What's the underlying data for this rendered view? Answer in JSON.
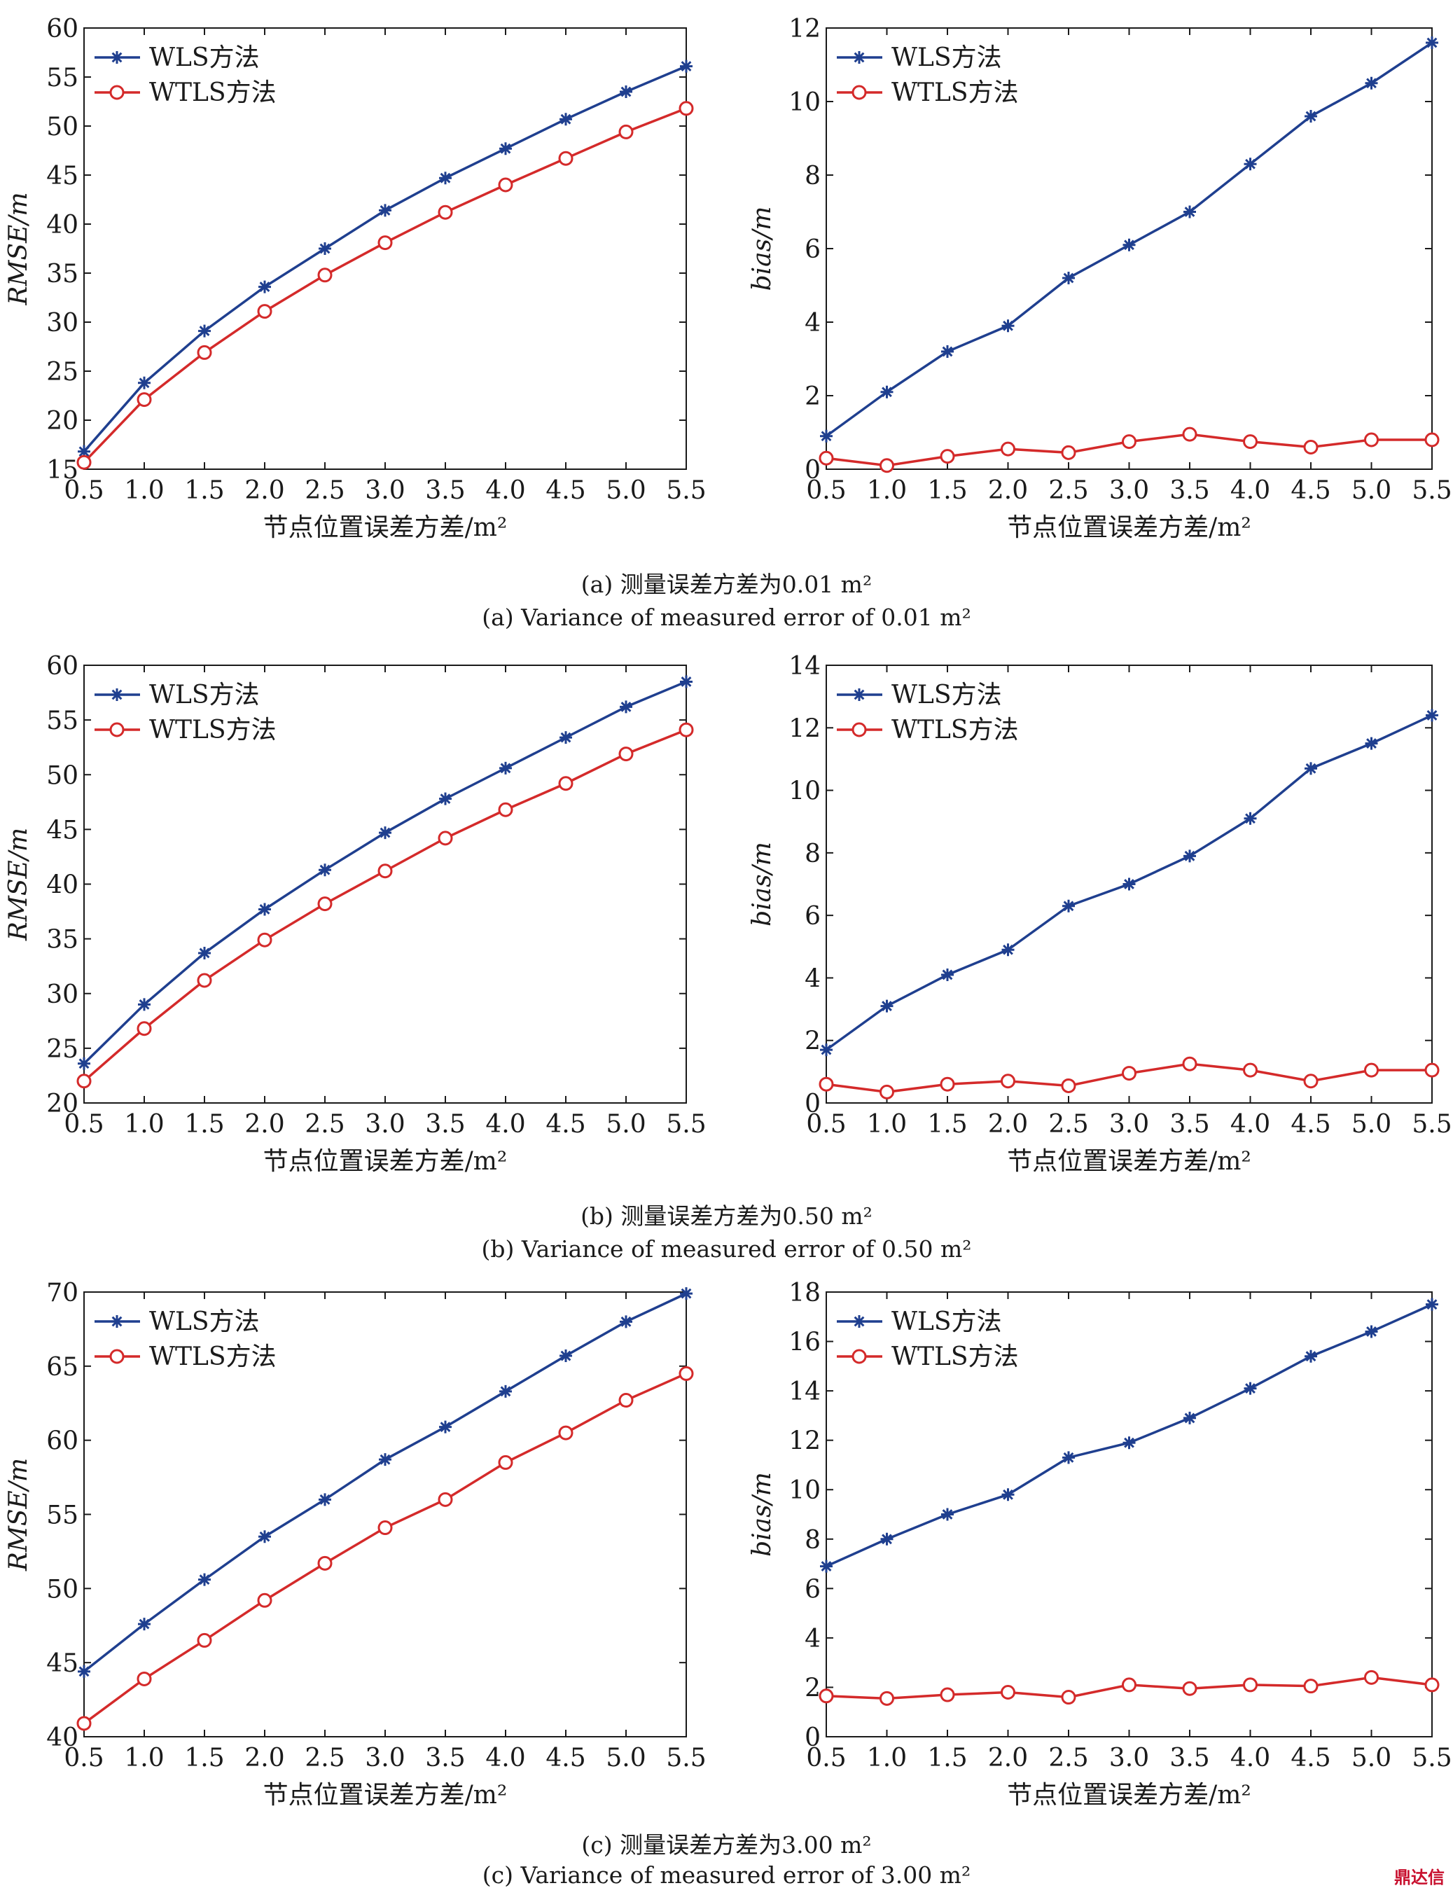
{
  "captions": [
    {
      "zh": "(a) 测量误差方差为0.01 m²",
      "en": "(a) Variance of measured error of 0.01 m²"
    },
    {
      "zh": "(b) 测量误差方差为0.50 m²",
      "en": "(b) Variance of measured error  of 0.50 m²"
    },
    {
      "zh": "(c) 测量误差方差为3.00 m²",
      "en": "(c) Variance of measured error of 3.00 m²"
    }
  ],
  "watermark": "鼎达信",
  "colors": {
    "wls": "#1f3f8f",
    "wtls": "#d42a2a"
  },
  "chart_data": [
    {
      "type": "line",
      "panel": "a-left",
      "x": [
        0.5,
        1.0,
        1.5,
        2.0,
        2.5,
        3.0,
        3.5,
        4.0,
        4.5,
        5.0,
        5.5
      ],
      "x_tick_labels": [
        "0.5",
        "1.0",
        "1.5",
        "2.0",
        "2.5",
        "3.0",
        "3.5",
        "4.0",
        "4.5",
        "5.0",
        "5.5"
      ],
      "xlabel": "节点位置误差方差/m²",
      "ylabel": "RMSE/m",
      "ylim": [
        15,
        60
      ],
      "y_ticks": [
        15,
        20,
        25,
        30,
        35,
        40,
        45,
        50,
        55,
        60
      ],
      "legend": [
        "WLS方法",
        "WTLS方法"
      ],
      "series": [
        {
          "name": "WLS方法",
          "marker": "star",
          "values": [
            16.8,
            23.8,
            29.1,
            33.6,
            37.5,
            41.4,
            44.7,
            47.7,
            50.7,
            53.5,
            56.1
          ]
        },
        {
          "name": "WTLS方法",
          "marker": "circle",
          "values": [
            15.7,
            22.1,
            26.9,
            31.1,
            34.8,
            38.1,
            41.2,
            44.0,
            46.7,
            49.4,
            51.8
          ]
        }
      ]
    },
    {
      "type": "line",
      "panel": "a-right",
      "x": [
        0.5,
        1.0,
        1.5,
        2.0,
        2.5,
        3.0,
        3.5,
        4.0,
        4.5,
        5.0,
        5.5
      ],
      "x_tick_labels": [
        "0.5",
        "1.0",
        "1.5",
        "2.0",
        "2.5",
        "3.0",
        "3.5",
        "4.0",
        "4.5",
        "5.0",
        "5.5"
      ],
      "xlabel": "节点位置误差方差/m²",
      "ylabel": "bias/m",
      "ylim": [
        0,
        12
      ],
      "y_ticks": [
        0,
        2,
        4,
        6,
        8,
        10,
        12
      ],
      "legend": [
        "WLS方法",
        "WTLS方法"
      ],
      "series": [
        {
          "name": "WLS方法",
          "marker": "star",
          "values": [
            0.9,
            2.1,
            3.2,
            3.9,
            5.2,
            6.1,
            7.0,
            8.3,
            9.6,
            10.5,
            11.6
          ]
        },
        {
          "name": "WTLS方法",
          "marker": "circle",
          "values": [
            0.3,
            0.1,
            0.35,
            0.55,
            0.45,
            0.75,
            0.95,
            0.75,
            0.6,
            0.8,
            0.8
          ]
        }
      ]
    },
    {
      "type": "line",
      "panel": "b-left",
      "x": [
        0.5,
        1.0,
        1.5,
        2.0,
        2.5,
        3.0,
        3.5,
        4.0,
        4.5,
        5.0,
        5.5
      ],
      "x_tick_labels": [
        "0.5",
        "1.0",
        "1.5",
        "2.0",
        "2.5",
        "3.0",
        "3.5",
        "4.0",
        "4.5",
        "5.0",
        "5.5"
      ],
      "xlabel": "节点位置误差方差/m²",
      "ylabel": "RMSE/m",
      "ylim": [
        20,
        60
      ],
      "y_ticks": [
        20,
        25,
        30,
        35,
        40,
        45,
        50,
        55,
        60
      ],
      "legend": [
        "WLS方法",
        "WTLS方法"
      ],
      "series": [
        {
          "name": "WLS方法",
          "marker": "star",
          "values": [
            23.6,
            29.0,
            33.7,
            37.7,
            41.3,
            44.7,
            47.8,
            50.6,
            53.4,
            56.2,
            58.5
          ]
        },
        {
          "name": "WTLS方法",
          "marker": "circle",
          "values": [
            22.0,
            26.8,
            31.2,
            34.9,
            38.2,
            41.2,
            44.2,
            46.8,
            49.2,
            51.9,
            54.1
          ]
        }
      ]
    },
    {
      "type": "line",
      "panel": "b-right",
      "x": [
        0.5,
        1.0,
        1.5,
        2.0,
        2.5,
        3.0,
        3.5,
        4.0,
        4.5,
        5.0,
        5.5
      ],
      "x_tick_labels": [
        "0.5",
        "1.0",
        "1.5",
        "2.0",
        "2.5",
        "3.0",
        "3.5",
        "4.0",
        "4.5",
        "5.0",
        "5.5"
      ],
      "xlabel": "节点位置误差方差/m²",
      "ylabel": "bias/m",
      "ylim": [
        0,
        14
      ],
      "y_ticks": [
        0,
        2,
        4,
        6,
        8,
        10,
        12,
        14
      ],
      "legend": [
        "WLS方法",
        "WTLS方法"
      ],
      "series": [
        {
          "name": "WLS方法",
          "marker": "star",
          "values": [
            1.7,
            3.1,
            4.1,
            4.9,
            6.3,
            7.0,
            7.9,
            9.1,
            10.7,
            11.5,
            12.4
          ]
        },
        {
          "name": "WTLS方法",
          "marker": "circle",
          "values": [
            0.6,
            0.35,
            0.6,
            0.7,
            0.55,
            0.95,
            1.25,
            1.05,
            0.7,
            1.05,
            1.05
          ]
        }
      ]
    },
    {
      "type": "line",
      "panel": "c-left",
      "x": [
        0.5,
        1.0,
        1.5,
        2.0,
        2.5,
        3.0,
        3.5,
        4.0,
        4.5,
        5.0,
        5.5
      ],
      "x_tick_labels": [
        "0.5",
        "1.0",
        "1.5",
        "2.0",
        "2.5",
        "3.0",
        "3.5",
        "4.0",
        "4.5",
        "5.0",
        "5.5"
      ],
      "xlabel": "节点位置误差方差/m²",
      "ylabel": "RMSE/m",
      "ylim": [
        40,
        70
      ],
      "y_ticks": [
        40,
        45,
        50,
        55,
        60,
        65,
        70
      ],
      "legend": [
        "WLS方法",
        "WTLS方法"
      ],
      "series": [
        {
          "name": "WLS方法",
          "marker": "star",
          "values": [
            44.4,
            47.6,
            50.6,
            53.5,
            56.0,
            58.7,
            60.9,
            63.3,
            65.7,
            68.0,
            69.9
          ]
        },
        {
          "name": "WTLS方法",
          "marker": "circle",
          "values": [
            40.9,
            43.9,
            46.5,
            49.2,
            51.7,
            54.1,
            56.0,
            58.5,
            60.5,
            62.7,
            64.5
          ]
        }
      ]
    },
    {
      "type": "line",
      "panel": "c-right",
      "x": [
        0.5,
        1.0,
        1.5,
        2.0,
        2.5,
        3.0,
        3.5,
        4.0,
        4.5,
        5.0,
        5.5
      ],
      "x_tick_labels": [
        "0.5",
        "1.0",
        "1.5",
        "2.0",
        "2.5",
        "3.0",
        "3.5",
        "4.0",
        "4.5",
        "5.0",
        "5.5"
      ],
      "xlabel": "节点位置误差方差/m²",
      "ylabel": "bias/m",
      "ylim": [
        0,
        18
      ],
      "y_ticks": [
        0,
        2,
        4,
        6,
        8,
        10,
        12,
        14,
        16,
        18
      ],
      "legend": [
        "WLS方法",
        "WTLS方法"
      ],
      "series": [
        {
          "name": "WLS方法",
          "marker": "star",
          "values": [
            6.9,
            8.0,
            9.0,
            9.8,
            11.3,
            11.9,
            12.9,
            14.1,
            15.4,
            16.4,
            17.5
          ]
        },
        {
          "name": "WTLS方法",
          "marker": "circle",
          "values": [
            1.65,
            1.55,
            1.7,
            1.8,
            1.6,
            2.1,
            1.95,
            2.1,
            2.05,
            2.4,
            2.1
          ]
        }
      ]
    }
  ]
}
